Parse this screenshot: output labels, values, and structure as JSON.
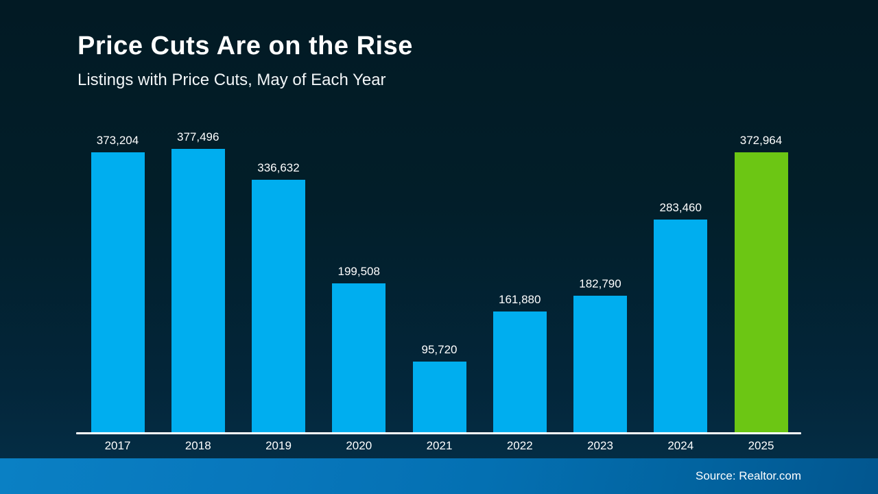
{
  "title": "Price Cuts Are on the Rise",
  "subtitle": "Listings with Price Cuts, May of Each Year",
  "source": "Source: Realtor.com",
  "colors": {
    "background_top": "#021a24",
    "background_bottom": "#053049",
    "bar_blue": "#00aeef",
    "bar_green": "#6cc614",
    "axis_line": "#ffffff",
    "text": "#ffffff",
    "footer_left": "#0a80c4",
    "footer_right": "#02568f"
  },
  "chart_data": {
    "type": "bar",
    "title": "Price Cuts Are on the Rise",
    "subtitle": "Listings with Price Cuts, May of Each Year",
    "categories": [
      "2017",
      "2018",
      "2019",
      "2020",
      "2021",
      "2022",
      "2023",
      "2024",
      "2025"
    ],
    "values": [
      373204,
      377496,
      336632,
      199508,
      95720,
      161880,
      182790,
      283460,
      372964
    ],
    "value_labels": [
      "373,204",
      "377,496",
      "336,632",
      "199,508",
      "95,720",
      "161,880",
      "182,790",
      "283,460",
      "372,964"
    ],
    "highlight_index": 8,
    "highlight_category": "2025",
    "xlabel": "",
    "ylabel": "",
    "ylim": [
      0,
      377496
    ],
    "grid": false,
    "legend": "none",
    "annotation": "Source: Realtor.com"
  }
}
